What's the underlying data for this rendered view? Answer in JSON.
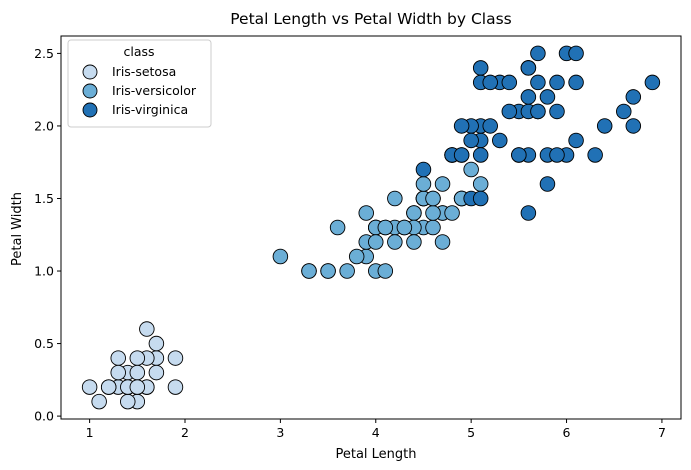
{
  "chart_data": {
    "type": "scatter",
    "title": "Petal Length vs Petal Width by Class",
    "xlabel": "Petal Length",
    "ylabel": "Petal Width",
    "xlim": [
      0.7,
      7.2
    ],
    "ylim": [
      -0.02,
      2.62
    ],
    "xticks": [
      "1",
      "2",
      "3",
      "4",
      "5",
      "6",
      "7"
    ],
    "yticks": [
      "0.0",
      "0.5",
      "1.0",
      "1.5",
      "2.0",
      "2.5"
    ],
    "grid": false,
    "legend": {
      "title": "class",
      "position": "top-left"
    },
    "series": [
      {
        "name": "Iris-setosa",
        "color": "#c6dbef",
        "points": [
          [
            1.4,
            0.2
          ],
          [
            1.3,
            0.2
          ],
          [
            1.5,
            0.2
          ],
          [
            1.7,
            0.4
          ],
          [
            1.4,
            0.3
          ],
          [
            1.5,
            0.1
          ],
          [
            1.6,
            0.2
          ],
          [
            1.1,
            0.1
          ],
          [
            1.2,
            0.2
          ],
          [
            1.3,
            0.4
          ],
          [
            1.0,
            0.2
          ],
          [
            1.7,
            0.5
          ],
          [
            1.9,
            0.2
          ],
          [
            1.6,
            0.4
          ],
          [
            1.5,
            0.4
          ],
          [
            1.4,
            0.1
          ],
          [
            1.7,
            0.3
          ],
          [
            1.9,
            0.4
          ],
          [
            1.6,
            0.6
          ],
          [
            1.3,
            0.3
          ],
          [
            1.5,
            0.3
          ],
          [
            1.2,
            0.2
          ],
          [
            1.6,
            0.2
          ],
          [
            1.4,
            0.2
          ],
          [
            1.5,
            0.2
          ]
        ]
      },
      {
        "name": "Iris-versicolor",
        "color": "#6baed6",
        "points": [
          [
            4.7,
            1.4
          ],
          [
            4.5,
            1.5
          ],
          [
            4.9,
            1.5
          ],
          [
            4.0,
            1.3
          ],
          [
            4.6,
            1.5
          ],
          [
            4.5,
            1.3
          ],
          [
            4.7,
            1.6
          ],
          [
            3.3,
            1.0
          ],
          [
            4.6,
            1.3
          ],
          [
            3.9,
            1.4
          ],
          [
            3.5,
            1.0
          ],
          [
            4.2,
            1.5
          ],
          [
            4.0,
            1.0
          ],
          [
            4.7,
            1.4
          ],
          [
            3.6,
            1.3
          ],
          [
            4.4,
            1.4
          ],
          [
            4.1,
            1.0
          ],
          [
            4.5,
            1.5
          ],
          [
            3.9,
            1.1
          ],
          [
            4.8,
            1.8
          ],
          [
            4.0,
            1.3
          ],
          [
            4.9,
            1.5
          ],
          [
            4.7,
            1.2
          ],
          [
            4.3,
            1.3
          ],
          [
            4.4,
            1.4
          ],
          [
            4.8,
            1.4
          ],
          [
            5.0,
            1.7
          ],
          [
            4.5,
            1.5
          ],
          [
            3.5,
            1.0
          ],
          [
            3.8,
            1.1
          ],
          [
            3.7,
            1.0
          ],
          [
            3.9,
            1.2
          ],
          [
            5.1,
            1.6
          ],
          [
            4.5,
            1.5
          ],
          [
            4.5,
            1.6
          ],
          [
            4.4,
            1.3
          ],
          [
            4.1,
            1.3
          ],
          [
            4.0,
            1.3
          ],
          [
            4.4,
            1.2
          ],
          [
            4.6,
            1.4
          ],
          [
            4.0,
            1.2
          ],
          [
            3.3,
            1.0
          ],
          [
            4.2,
            1.3
          ],
          [
            4.2,
            1.2
          ],
          [
            4.3,
            1.3
          ],
          [
            3.0,
            1.1
          ],
          [
            4.1,
            1.3
          ],
          [
            4.6,
            1.5
          ],
          [
            4.8,
            1.8
          ],
          [
            4.9,
            1.5
          ]
        ]
      },
      {
        "name": "Iris-virginica",
        "color": "#2171b5",
        "points": [
          [
            6.0,
            2.5
          ],
          [
            5.1,
            1.9
          ],
          [
            5.9,
            2.1
          ],
          [
            5.6,
            1.8
          ],
          [
            5.8,
            2.2
          ],
          [
            6.6,
            2.1
          ],
          [
            4.5,
            1.7
          ],
          [
            6.3,
            1.8
          ],
          [
            5.8,
            1.8
          ],
          [
            6.1,
            2.5
          ],
          [
            5.1,
            2.0
          ],
          [
            5.3,
            1.9
          ],
          [
            5.5,
            2.1
          ],
          [
            5.0,
            2.0
          ],
          [
            5.1,
            2.4
          ],
          [
            5.3,
            2.3
          ],
          [
            5.5,
            1.8
          ],
          [
            6.7,
            2.2
          ],
          [
            6.9,
            2.3
          ],
          [
            5.0,
            1.5
          ],
          [
            5.7,
            2.3
          ],
          [
            4.9,
            2.0
          ],
          [
            6.7,
            2.0
          ],
          [
            4.9,
            1.8
          ],
          [
            5.7,
            2.1
          ],
          [
            6.0,
            1.8
          ],
          [
            4.8,
            1.8
          ],
          [
            4.9,
            1.8
          ],
          [
            5.6,
            2.1
          ],
          [
            5.8,
            1.6
          ],
          [
            6.1,
            1.9
          ],
          [
            6.4,
            2.0
          ],
          [
            5.6,
            2.2
          ],
          [
            5.1,
            1.5
          ],
          [
            5.6,
            1.4
          ],
          [
            6.1,
            2.3
          ],
          [
            5.6,
            2.4
          ],
          [
            5.5,
            1.8
          ],
          [
            5.4,
            2.1
          ],
          [
            5.6,
            2.4
          ],
          [
            5.1,
            2.3
          ],
          [
            5.9,
            2.3
          ],
          [
            5.7,
            2.5
          ],
          [
            5.2,
            2.3
          ],
          [
            5.0,
            1.9
          ],
          [
            5.2,
            2.0
          ],
          [
            5.4,
            2.3
          ],
          [
            5.1,
            1.8
          ],
          [
            5.7,
            2.1
          ],
          [
            5.9,
            1.8
          ]
        ]
      }
    ]
  }
}
